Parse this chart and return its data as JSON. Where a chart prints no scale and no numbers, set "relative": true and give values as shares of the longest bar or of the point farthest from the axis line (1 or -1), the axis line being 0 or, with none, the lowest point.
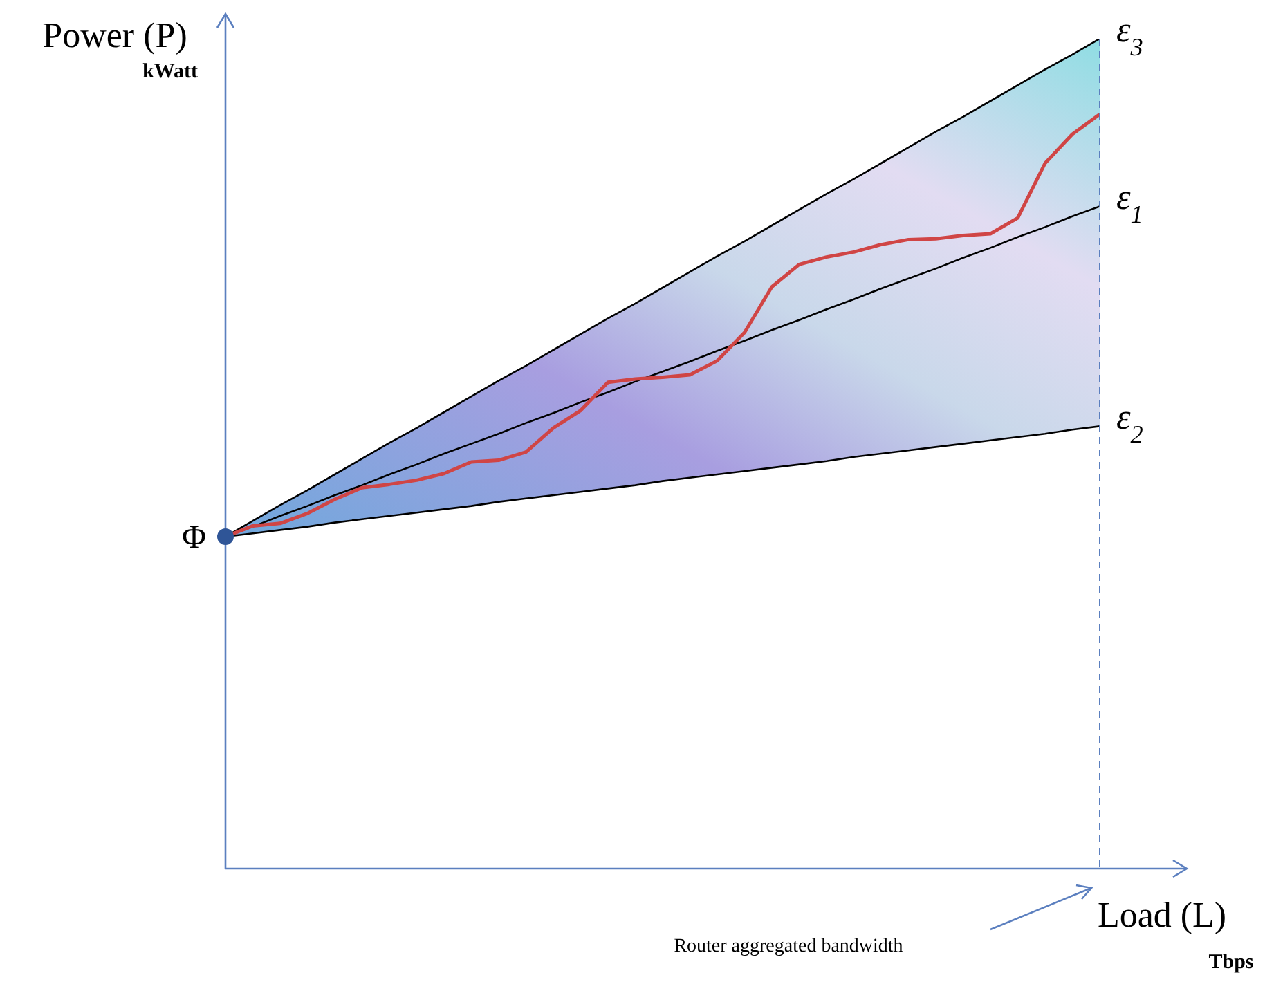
{
  "chart_data": {
    "type": "line",
    "relative": true,
    "xlabel": "Load (L)",
    "ylabel": "Power (P)",
    "tick_labels": false,
    "marker": "none",
    "categories": [
      null,
      null,
      null,
      null,
      null,
      null,
      null,
      null,
      null,
      null,
      null,
      null,
      null,
      null,
      null,
      null,
      null,
      null,
      null,
      null,
      null,
      null,
      null,
      null,
      null,
      null,
      null,
      null,
      null,
      null,
      null,
      null,
      null
    ],
    "series": [
      {
        "name": "ε$_{3}$",
        "color": "#000000",
        "values": [
          0.4,
          0.419,
          0.438,
          0.456,
          0.475,
          0.494,
          0.513,
          0.531,
          0.55,
          0.569,
          0.588,
          0.606,
          0.625,
          0.644,
          0.663,
          0.681,
          0.7,
          0.719,
          0.738,
          0.756,
          0.775,
          0.794,
          0.813,
          0.831,
          0.85,
          0.869,
          0.888,
          0.906,
          0.925,
          0.944,
          0.963,
          0.981,
          1.0
        ]
      },
      {
        "name": "ε$_{1}$",
        "color": "#000000",
        "values": [
          0.4,
          0.412,
          0.425,
          0.437,
          0.45,
          0.462,
          0.475,
          0.487,
          0.5,
          0.512,
          0.524,
          0.537,
          0.549,
          0.562,
          0.574,
          0.587,
          0.599,
          0.611,
          0.624,
          0.636,
          0.649,
          0.661,
          0.674,
          0.686,
          0.699,
          0.711,
          0.723,
          0.736,
          0.748,
          0.761,
          0.773,
          0.786,
          0.798
        ],
        "lower": [
          0.4,
          0.404,
          0.408,
          0.412,
          0.417,
          0.421,
          0.425,
          0.429,
          0.433,
          0.437,
          0.442,
          0.446,
          0.45,
          0.454,
          0.458,
          0.462,
          0.467,
          0.471,
          0.475,
          0.479,
          0.483,
          0.487,
          0.491,
          0.496,
          0.5,
          0.504,
          0.508,
          0.512,
          0.516,
          0.52,
          0.524,
          0.529,
          0.533
        ],
        "upper": [
          0.4,
          0.419,
          0.438,
          0.456,
          0.475,
          0.494,
          0.513,
          0.531,
          0.55,
          0.569,
          0.588,
          0.606,
          0.625,
          0.644,
          0.663,
          0.681,
          0.7,
          0.719,
          0.738,
          0.756,
          0.775,
          0.794,
          0.813,
          0.831,
          0.85,
          0.869,
          0.888,
          0.906,
          0.925,
          0.944,
          0.963,
          0.981,
          1.0
        ]
      },
      {
        "name": "ε$_{2}$",
        "color": "#000000",
        "values": [
          0.4,
          0.404,
          0.408,
          0.412,
          0.417,
          0.421,
          0.425,
          0.429,
          0.433,
          0.437,
          0.442,
          0.446,
          0.45,
          0.454,
          0.458,
          0.462,
          0.467,
          0.471,
          0.475,
          0.479,
          0.483,
          0.487,
          0.491,
          0.496,
          0.5,
          0.504,
          0.508,
          0.512,
          0.516,
          0.52,
          0.524,
          0.529,
          0.533
        ]
      },
      {
        "color": "#d04545",
        "values": [
          0.4,
          0.413,
          0.416,
          0.428,
          0.445,
          0.459,
          0.463,
          0.468,
          0.476,
          0.49,
          0.492,
          0.502,
          0.531,
          0.552,
          0.586,
          0.59,
          0.592,
          0.595,
          0.612,
          0.646,
          0.701,
          0.728,
          0.737,
          0.743,
          0.752,
          0.758,
          0.759,
          0.763,
          0.765,
          0.784,
          0.85,
          0.885,
          0.909
        ]
      }
    ],
    "annotations": [
      "kWatt",
      "Tbps",
      "Router aggregated bandwidth",
      "Φ"
    ]
  }
}
